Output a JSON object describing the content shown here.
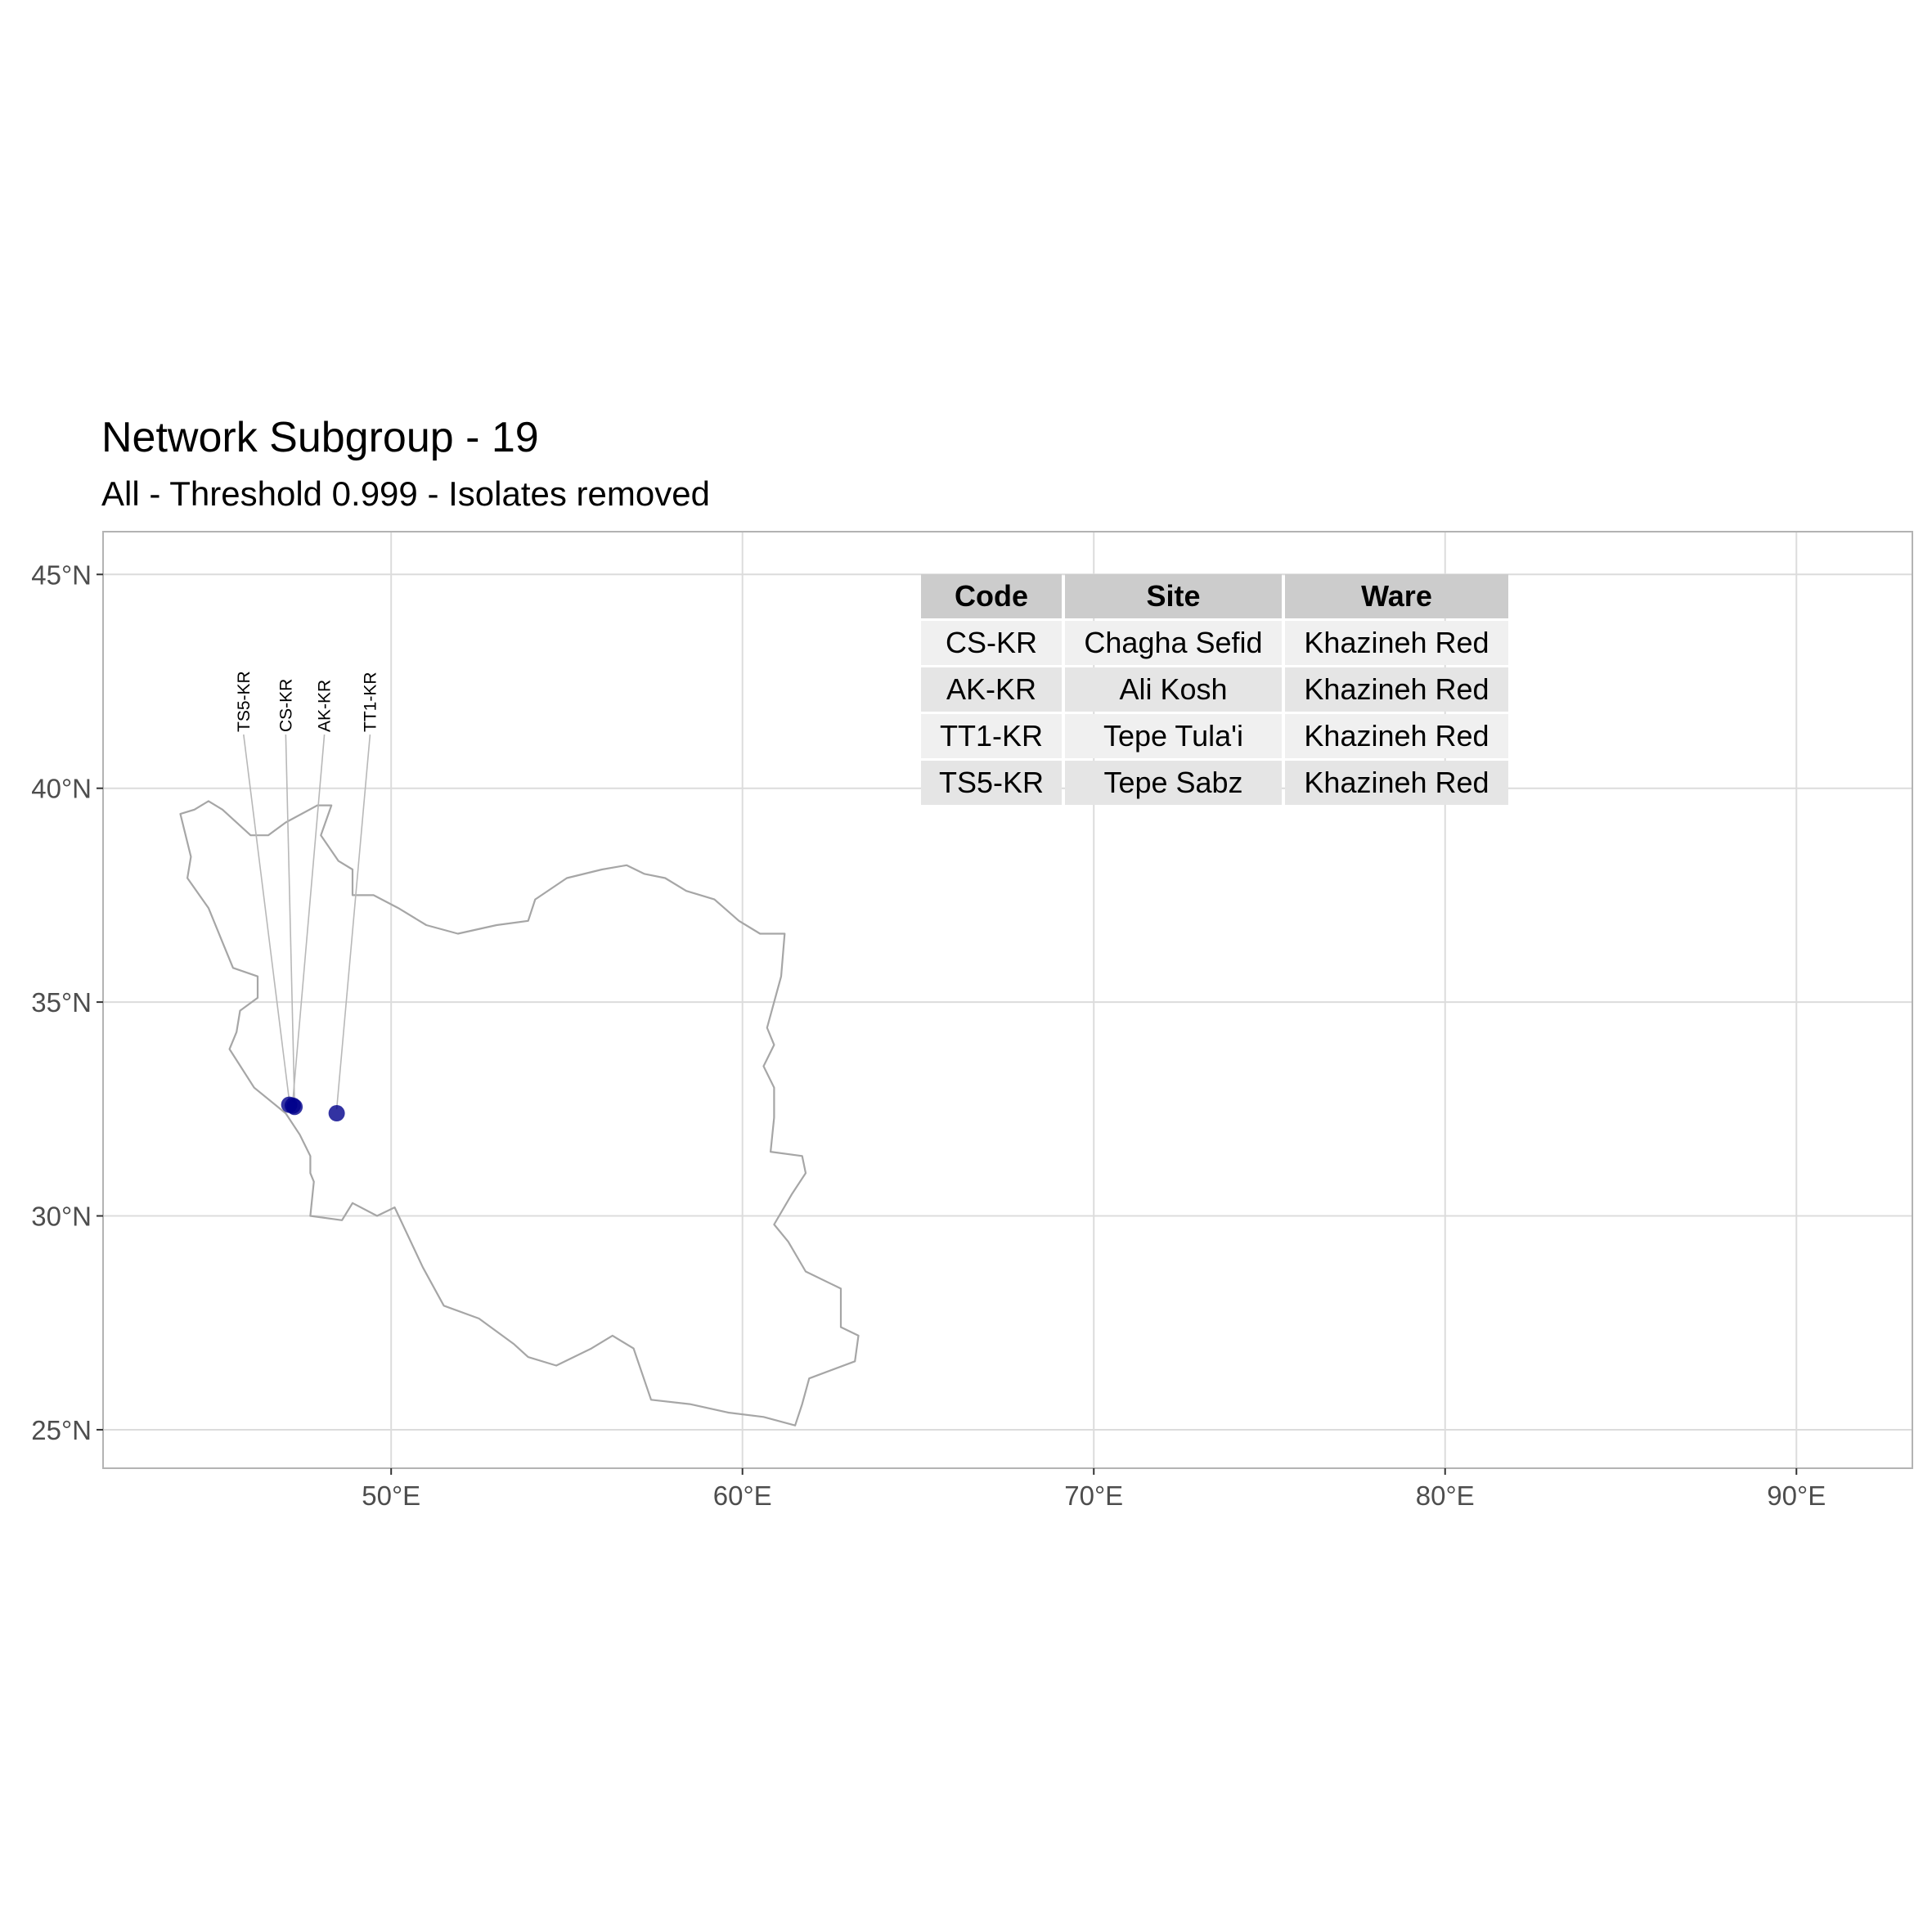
{
  "title": "Network Subgroup - 19",
  "subtitle": "All - Threshold 0.999 - Isolates removed",
  "colors": {
    "point": "#00008B",
    "country_outline": "#a6a6a6",
    "grid": "#dcdcdc",
    "panel_border": "#b3b3b3",
    "table_header_bg": "#cccccc",
    "table_row_light": "#f0f0f0",
    "table_row_dark": "#e5e5e5"
  },
  "chart_data": {
    "type": "scatter",
    "map_region": "Iran",
    "xlim": [
      41.8,
      93.3
    ],
    "ylim": [
      24.1,
      46.0
    ],
    "x_ticks": [
      {
        "value": 50,
        "label": "50°E"
      },
      {
        "value": 60,
        "label": "60°E"
      },
      {
        "value": 70,
        "label": "70°E"
      },
      {
        "value": 80,
        "label": "80°E"
      },
      {
        "value": 90,
        "label": "90°E"
      }
    ],
    "y_ticks": [
      {
        "value": 25,
        "label": "25°N"
      },
      {
        "value": 30,
        "label": "30°N"
      },
      {
        "value": 35,
        "label": "35°N"
      },
      {
        "value": 40,
        "label": "40°N"
      },
      {
        "value": 45,
        "label": "45°N"
      }
    ],
    "grid": true,
    "points": [
      {
        "code": "TS5-KR",
        "lon": 47.1,
        "lat": 32.6,
        "label_lon": 45.8
      },
      {
        "code": "CS-KR",
        "lon": 47.25,
        "lat": 32.55,
        "label_lon": 47.0
      },
      {
        "code": "AK-KR",
        "lon": 47.2,
        "lat": 32.58,
        "label_lon": 48.1
      },
      {
        "code": "TT1-KR",
        "lon": 48.45,
        "lat": 32.4,
        "label_lon": 49.4
      }
    ],
    "table": {
      "columns": [
        "Code",
        "Site",
        "Ware"
      ],
      "rows": [
        [
          "CS-KR",
          "Chagha Sefid",
          "Khazineh Red"
        ],
        [
          "AK-KR",
          "Ali Kosh",
          "Khazineh Red"
        ],
        [
          "TT1-KR",
          "Tepe Tula'i",
          "Khazineh Red"
        ],
        [
          "TS5-KR",
          "Tepe Sabz",
          "Khazineh Red"
        ]
      ]
    },
    "iran_outline": [
      [
        44.0,
        39.4
      ],
      [
        44.4,
        39.5
      ],
      [
        44.8,
        39.7
      ],
      [
        45.2,
        39.5
      ],
      [
        46.0,
        38.9
      ],
      [
        46.5,
        38.9
      ],
      [
        47.0,
        39.2
      ],
      [
        47.9,
        39.6
      ],
      [
        48.3,
        39.6
      ],
      [
        48.0,
        38.9
      ],
      [
        48.5,
        38.3
      ],
      [
        48.9,
        38.1
      ],
      [
        48.9,
        37.5
      ],
      [
        49.5,
        37.5
      ],
      [
        50.2,
        37.2
      ],
      [
        51.0,
        36.8
      ],
      [
        51.9,
        36.6
      ],
      [
        53.0,
        36.8
      ],
      [
        53.9,
        36.9
      ],
      [
        54.1,
        37.4
      ],
      [
        55.0,
        37.9
      ],
      [
        56.0,
        38.1
      ],
      [
        56.7,
        38.2
      ],
      [
        57.2,
        38.0
      ],
      [
        57.8,
        37.9
      ],
      [
        58.4,
        37.6
      ],
      [
        59.2,
        37.4
      ],
      [
        59.9,
        36.9
      ],
      [
        60.5,
        36.6
      ],
      [
        61.2,
        36.6
      ],
      [
        61.1,
        35.6
      ],
      [
        60.7,
        34.4
      ],
      [
        60.9,
        34.0
      ],
      [
        60.6,
        33.5
      ],
      [
        60.9,
        33.0
      ],
      [
        60.9,
        32.3
      ],
      [
        60.8,
        31.5
      ],
      [
        61.7,
        31.4
      ],
      [
        61.8,
        31.0
      ],
      [
        61.4,
        30.5
      ],
      [
        60.9,
        29.8
      ],
      [
        61.3,
        29.4
      ],
      [
        61.8,
        28.7
      ],
      [
        62.8,
        28.3
      ],
      [
        62.8,
        27.4
      ],
      [
        63.3,
        27.2
      ],
      [
        63.2,
        26.6
      ],
      [
        61.9,
        26.2
      ],
      [
        61.7,
        25.6
      ],
      [
        61.5,
        25.1
      ],
      [
        60.6,
        25.3
      ],
      [
        59.6,
        25.4
      ],
      [
        58.5,
        25.6
      ],
      [
        57.4,
        25.7
      ],
      [
        56.9,
        26.9
      ],
      [
        56.3,
        27.2
      ],
      [
        55.7,
        26.9
      ],
      [
        54.7,
        26.5
      ],
      [
        53.9,
        26.7
      ],
      [
        53.5,
        27.0
      ],
      [
        52.5,
        27.6
      ],
      [
        51.5,
        27.9
      ],
      [
        50.9,
        28.8
      ],
      [
        50.1,
        30.2
      ],
      [
        49.6,
        30.0
      ],
      [
        48.9,
        30.3
      ],
      [
        48.6,
        29.9
      ],
      [
        47.7,
        30.0
      ],
      [
        47.8,
        30.8
      ],
      [
        47.7,
        31.0
      ],
      [
        47.7,
        31.4
      ],
      [
        47.4,
        31.9
      ],
      [
        47.0,
        32.4
      ],
      [
        46.1,
        33.0
      ],
      [
        45.4,
        33.9
      ],
      [
        45.6,
        34.3
      ],
      [
        45.7,
        34.8
      ],
      [
        46.2,
        35.1
      ],
      [
        46.2,
        35.6
      ],
      [
        45.5,
        35.8
      ],
      [
        45.2,
        36.4
      ],
      [
        44.8,
        37.2
      ],
      [
        44.2,
        37.9
      ],
      [
        44.3,
        38.4
      ],
      [
        44.0,
        39.4
      ]
    ]
  }
}
